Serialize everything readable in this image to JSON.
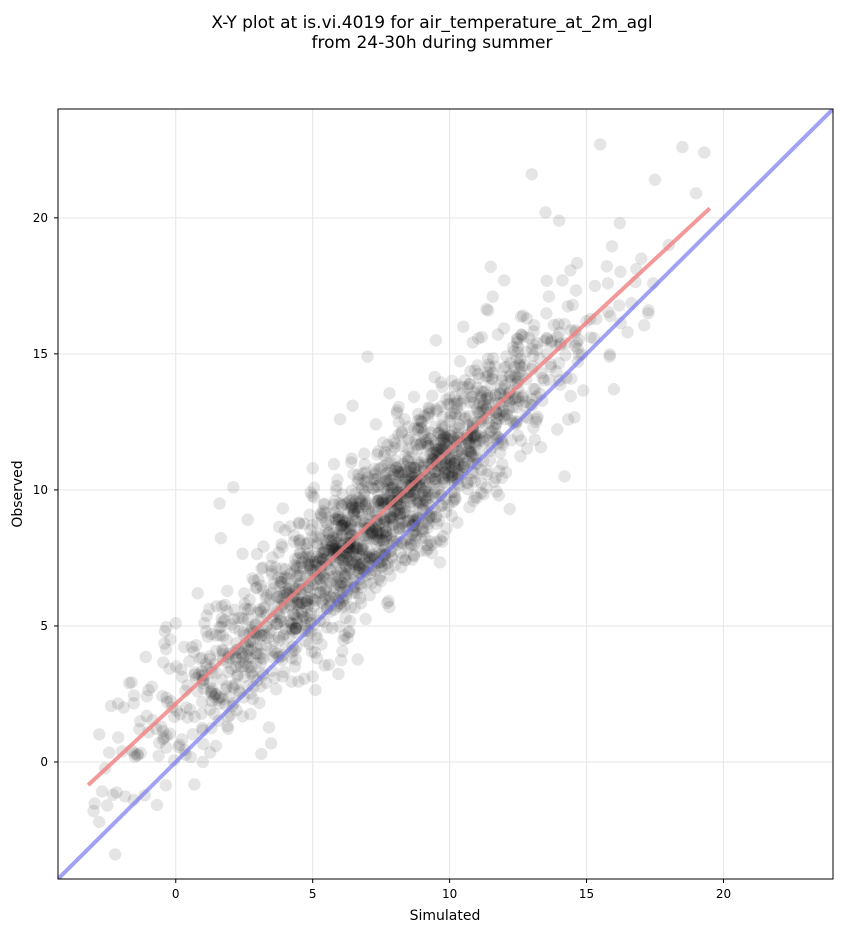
{
  "chart_data": {
    "type": "scatter",
    "title": "X-Y plot at is.vi.4019 for air_temperature_at_2m_agl",
    "subtitle": "from 24-30h during summer",
    "xlabel": "Simulated",
    "ylabel": "Observed",
    "xlim": [
      -4.3,
      24.0
    ],
    "ylim": [
      -4.3,
      24.0
    ],
    "xticks": [
      0,
      5,
      10,
      15,
      20
    ],
    "yticks": [
      0,
      5,
      10,
      15,
      20
    ],
    "grid": true,
    "colors": {
      "points": "#000000",
      "points_alpha": 0.1,
      "fit_line": "#f08080",
      "identity_line": "#7070f0"
    },
    "series": [
      {
        "kind": "points",
        "approx_count": 1800,
        "center_line": {
          "x_range": [
            -3.2,
            19.5
          ],
          "slope": 0.93,
          "intercept": 1.95
        },
        "spread_sd": 1.35,
        "representative_points": [
          [
            -3.0,
            -1.8
          ],
          [
            -2.8,
            -2.2
          ],
          [
            -2.5,
            -1.6
          ],
          [
            -2.3,
            -1.2
          ],
          [
            -2.1,
            0.9
          ],
          [
            -1.9,
            2.0
          ],
          [
            -1.7,
            2.9
          ],
          [
            -1.5,
            0.2
          ],
          [
            -1.3,
            1.5
          ],
          [
            -1.0,
            1.1
          ],
          [
            -0.6,
            0.7
          ],
          [
            -0.4,
            4.8
          ],
          [
            -0.2,
            4.5
          ],
          [
            0.0,
            5.1
          ],
          [
            0.2,
            3.4
          ],
          [
            0.5,
            3.7
          ],
          [
            0.8,
            6.2
          ],
          [
            1.0,
            2.9
          ],
          [
            1.3,
            4.7
          ],
          [
            1.6,
            9.5
          ],
          [
            2.1,
            10.1
          ],
          [
            2.5,
            6.2
          ],
          [
            3.0,
            5.5
          ],
          [
            3.5,
            7.0
          ],
          [
            4.0,
            6.4
          ],
          [
            4.5,
            8.8
          ],
          [
            5.0,
            10.8
          ],
          [
            5.5,
            8.0
          ],
          [
            6.0,
            12.6
          ],
          [
            6.5,
            9.2
          ],
          [
            7.0,
            14.9
          ],
          [
            7.5,
            9.5
          ],
          [
            8.0,
            10.7
          ],
          [
            8.5,
            11.5
          ],
          [
            9.0,
            12.5
          ],
          [
            9.5,
            15.5
          ],
          [
            10.0,
            11.0
          ],
          [
            10.5,
            16.0
          ],
          [
            11.0,
            13.0
          ],
          [
            11.5,
            18.2
          ],
          [
            12.0,
            14.5
          ],
          [
            12.5,
            12.0
          ],
          [
            13.0,
            21.6
          ],
          [
            13.5,
            20.2
          ],
          [
            14.0,
            19.9
          ],
          [
            14.5,
            16.8
          ],
          [
            15.0,
            16.2
          ],
          [
            15.5,
            22.7
          ],
          [
            16.0,
            13.7
          ],
          [
            16.5,
            15.8
          ],
          [
            17.0,
            18.5
          ],
          [
            17.5,
            21.4
          ],
          [
            18.0,
            19.0
          ],
          [
            18.5,
            22.6
          ],
          [
            19.0,
            20.9
          ],
          [
            19.3,
            22.4
          ],
          [
            14.2,
            10.5
          ],
          [
            11.8,
            9.8
          ],
          [
            9.3,
            8.1
          ],
          [
            6.2,
            5.3
          ]
        ]
      },
      {
        "kind": "fit_line",
        "x": [
          -3.2,
          19.5
        ],
        "y": [
          -0.85,
          20.35
        ]
      },
      {
        "kind": "identity_line",
        "x": [
          -4.3,
          24.0
        ],
        "y": [
          -4.3,
          24.0
        ]
      }
    ]
  }
}
